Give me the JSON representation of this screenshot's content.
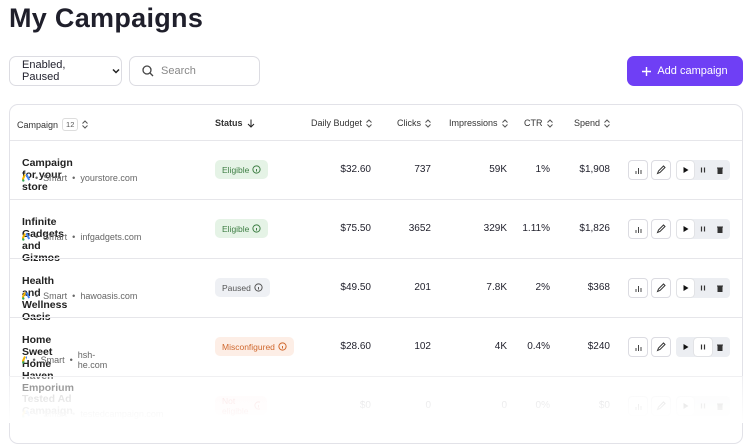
{
  "header": {
    "title": "My Campaigns"
  },
  "toolbar": {
    "filter": "Enabled, Paused",
    "search_placeholder": "Search",
    "add_button": "Add campaign"
  },
  "table": {
    "columns": {
      "campaign": "Campaign",
      "count": "12",
      "status": "Status",
      "budget": "Daily Budget",
      "clicks": "Clicks",
      "impressions": "Impressions",
      "ctr": "CTR",
      "spend": "Spend"
    },
    "rows": [
      {
        "name": "Campaign for your store",
        "type": "Smart",
        "domain": "yourstore.com",
        "status": "Eligible",
        "status_kind": "ok",
        "budget": "$32.60",
        "clicks": "737",
        "impressions": "59K",
        "ctr": "1%",
        "spend": "$1,908",
        "active": "play"
      },
      {
        "name": "Infinite Gadgets and Gizmos",
        "type": "Smart",
        "domain": "infgadgets.com",
        "status": "Eligible",
        "status_kind": "ok",
        "budget": "$75.50",
        "clicks": "3652",
        "impressions": "329K",
        "ctr": "1.11%",
        "spend": "$1,826",
        "active": "play"
      },
      {
        "name": "Health and Wellness Oasis",
        "type": "Smart",
        "domain": "hawoasis.com",
        "status": "Paused",
        "status_kind": "paused",
        "budget": "$49.50",
        "clicks": "201",
        "impressions": "7.8K",
        "ctr": "2%",
        "spend": "$368",
        "active": "play"
      },
      {
        "name": "Home Sweet Home Haven Emporium",
        "type": "Smart",
        "domain": "hsh-he.com",
        "status": "Misconfigured",
        "status_kind": "warn",
        "budget": "$28.60",
        "clicks": "102",
        "impressions": "4K",
        "ctr": "0.4%",
        "spend": "$240",
        "active": "pause"
      },
      {
        "name": "Tested Ad Campaign",
        "type": "Smart",
        "domain": "testedcampaign.com",
        "status": "Not eligible",
        "status_kind": "bad",
        "budget": "$0",
        "clicks": "0",
        "impressions": "0",
        "ctr": "0%",
        "spend": "$0",
        "active": "play"
      }
    ]
  }
}
